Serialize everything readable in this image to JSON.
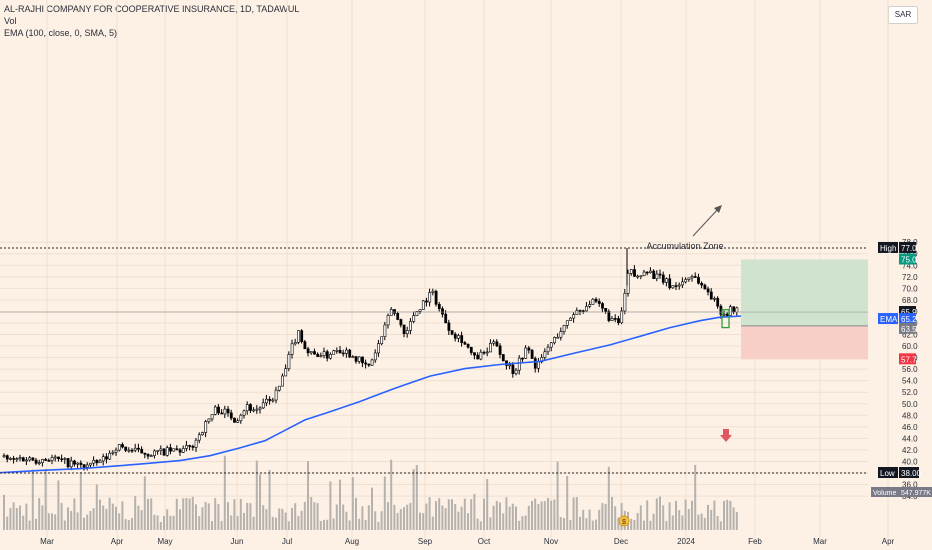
{
  "header": {
    "title": "AL-RAJHI COMPANY FOR COOPERATIVE INSURANCE, 1D, TADAWUL",
    "vol_label": "Vol",
    "ema_label": "EMA (100, close, 0, SMA, 5)",
    "currency": "SAR"
  },
  "annotations": {
    "accumulation_zone": "Accumulation Zone",
    "dividend_marker": "$"
  },
  "badges": {
    "high_label": "High",
    "high_value": "77.0",
    "low_label": "Low",
    "low_value": "38.00",
    "target": "75.0",
    "last": "65.9",
    "ema_label": "EMA",
    "ema_value": "65.2",
    "entry": "63.5",
    "stop": "57.7",
    "volume_label": "Volume",
    "volume_value": "547.977K"
  },
  "colors": {
    "background": "#fdf1e6",
    "candle": "#000000",
    "ema_line": "#2962ff",
    "volume": "#b5b2ad",
    "profit_zone": "#cfe3cf",
    "loss_zone": "#f8cfc6",
    "target_badge": "#089981",
    "stop_badge": "#f23645",
    "zone_box": "#2e9e3a",
    "arrow_marker": "#e0575f"
  },
  "chart_data": {
    "type": "candlestick",
    "y_axis_ticks": [
      "78.0",
      "76.0",
      "74.0",
      "72.0",
      "70.0",
      "68.0",
      "66.0",
      "64.0",
      "62.0",
      "60.0",
      "58.0",
      "56.0",
      "54.0",
      "52.0",
      "50.0",
      "48.0",
      "46.0",
      "44.0",
      "42.0",
      "40.0",
      "38.0",
      "36.0",
      "34.0"
    ],
    "x_axis_ticks": [
      "Mar",
      "Apr",
      "May",
      "Jun",
      "Jul",
      "Aug",
      "Sep",
      "Oct",
      "Nov",
      "Dec",
      "2024",
      "Feb",
      "Mar",
      "Apr"
    ],
    "ylim": [
      33,
      79.5
    ],
    "high": 77.0,
    "low": 38.0,
    "last_close": 65.9,
    "ema_last": 65.2,
    "position": {
      "target": 75.0,
      "entry": 63.5,
      "stop": 57.7
    },
    "price_path": [
      [
        0,
        40.9
      ],
      [
        10,
        40.1
      ],
      [
        20,
        40.6
      ],
      [
        35,
        40.3
      ],
      [
        50,
        40.6
      ],
      [
        65,
        39.8
      ],
      [
        80,
        39.2
      ],
      [
        95,
        39.6
      ],
      [
        105,
        40.6
      ],
      [
        115,
        42.6
      ],
      [
        125,
        42.2
      ],
      [
        135,
        41.7
      ],
      [
        150,
        41.4
      ],
      [
        165,
        41.7
      ],
      [
        180,
        41.9
      ],
      [
        190,
        42.4
      ],
      [
        195,
        43.8
      ],
      [
        200,
        45.2
      ],
      [
        207,
        47.1
      ],
      [
        215,
        49.2
      ],
      [
        225,
        48.4
      ],
      [
        235,
        47.3
      ],
      [
        245,
        49.6
      ],
      [
        255,
        48.9
      ],
      [
        262,
        49.8
      ],
      [
        270,
        50.6
      ],
      [
        278,
        52.8
      ],
      [
        285,
        56.2
      ],
      [
        292,
        60.5
      ],
      [
        298,
        62.6
      ],
      [
        305,
        59.2
      ],
      [
        312,
        58.4
      ],
      [
        318,
        58.8
      ],
      [
        325,
        58.2
      ],
      [
        335,
        59.7
      ],
      [
        345,
        59.1
      ],
      [
        355,
        58.0
      ],
      [
        362,
        56.8
      ],
      [
        368,
        56.4
      ],
      [
        372,
        58.1
      ],
      [
        378,
        60.4
      ],
      [
        384,
        63.1
      ],
      [
        390,
        66.6
      ],
      [
        398,
        64.2
      ],
      [
        405,
        62.1
      ],
      [
        413,
        65.6
      ],
      [
        420,
        67.1
      ],
      [
        426,
        68.4
      ],
      [
        432,
        69.2
      ],
      [
        438,
        66.5
      ],
      [
        445,
        64.1
      ],
      [
        452,
        62.2
      ],
      [
        460,
        61.4
      ],
      [
        467,
        59.6
      ],
      [
        473,
        57.8
      ],
      [
        480,
        58.4
      ],
      [
        488,
        59.3
      ],
      [
        494,
        61.6
      ],
      [
        500,
        58.1
      ],
      [
        507,
        56.7
      ],
      [
        513,
        55.6
      ],
      [
        520,
        58.2
      ],
      [
        527,
        59.7
      ],
      [
        533,
        56.6
      ],
      [
        540,
        57.3
      ],
      [
        546,
        59.6
      ],
      [
        552,
        60.8
      ],
      [
        558,
        62.4
      ],
      [
        565,
        63.6
      ],
      [
        572,
        65.8
      ],
      [
        580,
        66.3
      ],
      [
        588,
        67.6
      ],
      [
        595,
        67.3
      ],
      [
        602,
        66.2
      ],
      [
        610,
        64.6
      ],
      [
        617,
        63.8
      ],
      [
        622,
        66.6
      ],
      [
        625,
        70.4
      ],
      [
        628,
        73.2
      ],
      [
        632,
        72.4
      ],
      [
        638,
        71.6
      ],
      [
        644,
        73.8
      ],
      [
        650,
        72.6
      ],
      [
        656,
        71.9
      ],
      [
        662,
        71.5
      ],
      [
        668,
        70.6
      ],
      [
        675,
        70.4
      ],
      [
        682,
        71.2
      ],
      [
        690,
        72.4
      ],
      [
        696,
        71.6
      ],
      [
        702,
        70.1
      ],
      [
        708,
        69.4
      ],
      [
        713,
        67.8
      ],
      [
        718,
        66.5
      ],
      [
        723,
        65.6
      ],
      [
        728,
        66.1
      ],
      [
        733,
        66.3
      ],
      [
        738,
        66.2
      ],
      [
        741,
        65.9
      ]
    ],
    "ema_path": [
      [
        0,
        38.05
      ],
      [
        40,
        38.45
      ],
      [
        80,
        38.75
      ],
      [
        100,
        39.0
      ],
      [
        140,
        39.55
      ],
      [
        180,
        40.15
      ],
      [
        210,
        41.0
      ],
      [
        240,
        42.35
      ],
      [
        265,
        43.6
      ],
      [
        285,
        45.4
      ],
      [
        305,
        47.2
      ],
      [
        330,
        48.6
      ],
      [
        360,
        50.4
      ],
      [
        395,
        52.7
      ],
      [
        430,
        54.8
      ],
      [
        465,
        56.1
      ],
      [
        500,
        56.8
      ],
      [
        540,
        57.35
      ],
      [
        575,
        58.8
      ],
      [
        610,
        60.2
      ],
      [
        640,
        61.7
      ],
      [
        670,
        63.2
      ],
      [
        700,
        64.4
      ],
      [
        720,
        65.0
      ],
      [
        741,
        65.2
      ]
    ]
  }
}
